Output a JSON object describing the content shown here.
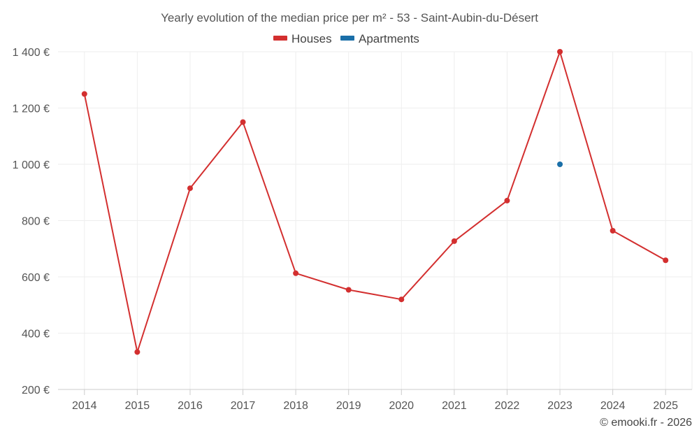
{
  "chart_data": {
    "type": "line",
    "title": "Yearly evolution of the median price per m² - 53 - Saint-Aubin-du-Désert",
    "categories": [
      "2014",
      "2015",
      "2016",
      "2017",
      "2018",
      "2019",
      "2020",
      "2021",
      "2022",
      "2023",
      "2024",
      "2025"
    ],
    "ylim": [
      200,
      1400
    ],
    "yticks": [
      200,
      400,
      600,
      800,
      1000,
      1200,
      1400
    ],
    "ytick_labels": [
      "200 €",
      "400 €",
      "600 €",
      "800 €",
      "1 000 €",
      "1 200 €",
      "1 400 €"
    ],
    "grid": true,
    "legend_position": "top-center",
    "series": [
      {
        "name": "Houses",
        "color": "#d32f2f",
        "values": [
          1250,
          333,
          915,
          1150,
          613,
          554,
          520,
          727,
          871,
          1400,
          764,
          659
        ]
      },
      {
        "name": "Apartments",
        "color": "#1a6fa8",
        "values": [
          null,
          null,
          null,
          null,
          null,
          null,
          null,
          null,
          null,
          1000,
          null,
          null
        ]
      }
    ]
  },
  "credit": "© emooki.fr - 2026"
}
